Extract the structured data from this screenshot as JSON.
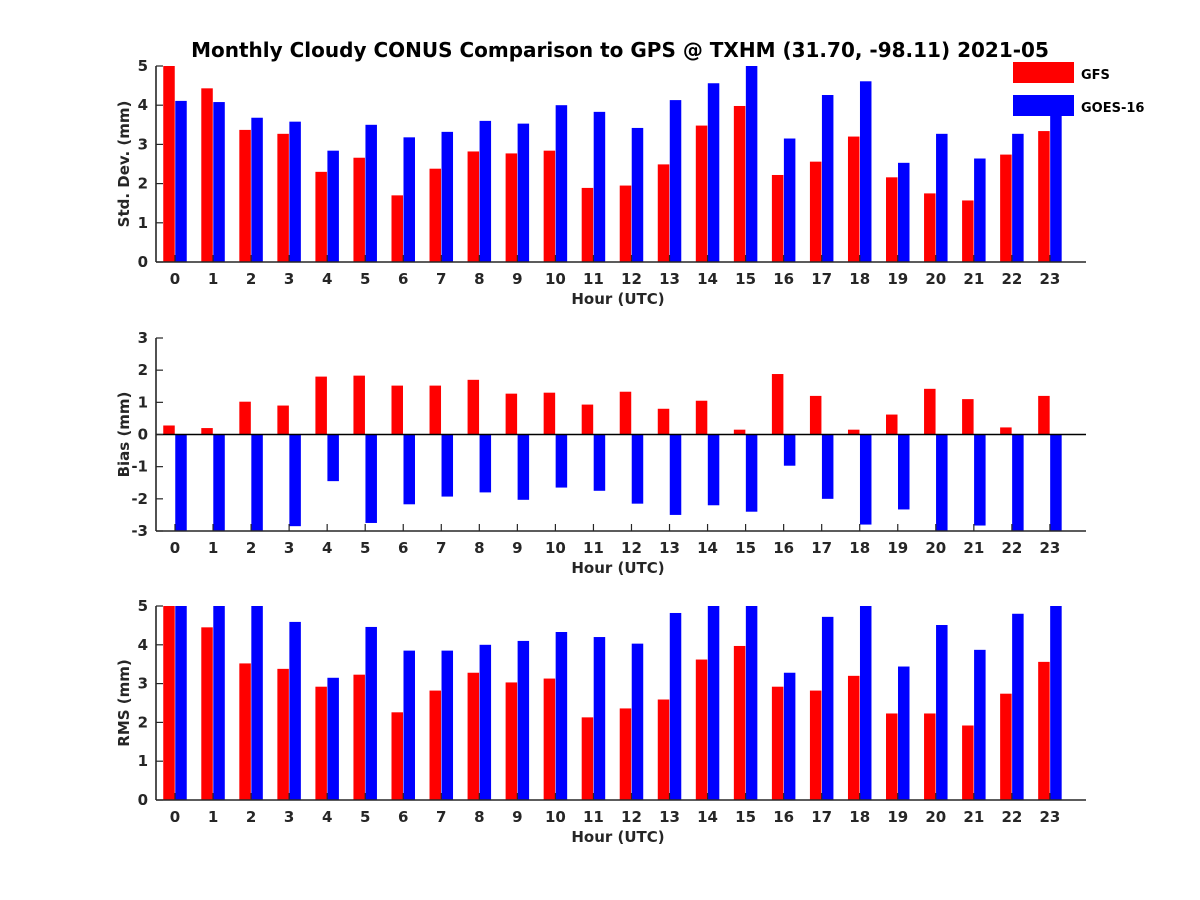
{
  "title": "Monthly Cloudy CONUS Comparison to GPS @ TXHM (31.70, -98.11) 2021-05",
  "legend": {
    "placement": "top-right",
    "entries": [
      "GFS",
      "GOES-16"
    ]
  },
  "colors": {
    "GFS": "#ff0000",
    "GOES-16": "#0000ff",
    "axis": "#262626"
  },
  "chart_data": [
    {
      "type": "bar",
      "xlabel": "Hour (UTC)",
      "ylabel": "Std. Dev. (mm)",
      "categories": [
        "0",
        "1",
        "2",
        "3",
        "4",
        "5",
        "6",
        "7",
        "8",
        "9",
        "10",
        "11",
        "12",
        "13",
        "14",
        "15",
        "16",
        "17",
        "18",
        "19",
        "20",
        "21",
        "22",
        "23"
      ],
      "ylim": [
        0,
        5
      ],
      "yticks": [
        0,
        1,
        2,
        3,
        4,
        5
      ],
      "grid": false,
      "series": [
        {
          "name": "GFS",
          "values": [
            5.0,
            4.43,
            3.37,
            3.27,
            2.3,
            2.66,
            1.7,
            2.38,
            2.82,
            2.77,
            2.84,
            1.89,
            1.95,
            2.49,
            3.48,
            3.98,
            2.22,
            2.56,
            3.2,
            2.16,
            1.75,
            1.57,
            2.74,
            3.34
          ]
        },
        {
          "name": "GOES-16",
          "values": [
            4.11,
            4.08,
            3.68,
            3.58,
            2.84,
            3.5,
            3.18,
            3.32,
            3.6,
            3.53,
            4.0,
            3.83,
            3.42,
            4.13,
            4.56,
            5.0,
            3.15,
            4.26,
            4.61,
            2.53,
            3.27,
            2.64,
            3.27,
            3.9
          ]
        }
      ]
    },
    {
      "type": "bar",
      "xlabel": "Hour (UTC)",
      "ylabel": "Bias (mm)",
      "categories": [
        "0",
        "1",
        "2",
        "3",
        "4",
        "5",
        "6",
        "7",
        "8",
        "9",
        "10",
        "11",
        "12",
        "13",
        "14",
        "15",
        "16",
        "17",
        "18",
        "19",
        "20",
        "21",
        "22",
        "23"
      ],
      "ylim": [
        -3,
        3
      ],
      "yticks": [
        -3,
        -2,
        -1,
        0,
        1,
        2,
        3
      ],
      "grid": false,
      "zero_line": true,
      "series": [
        {
          "name": "GFS",
          "values": [
            0.28,
            0.2,
            1.02,
            0.9,
            1.8,
            1.83,
            1.52,
            1.52,
            1.7,
            1.27,
            1.3,
            0.93,
            1.33,
            0.8,
            1.05,
            0.15,
            1.88,
            1.2,
            0.15,
            0.62,
            1.42,
            1.1,
            0.22,
            1.2
          ]
        },
        {
          "name": "GOES-16",
          "values": [
            -3.0,
            -3.0,
            -3.0,
            -2.85,
            -1.45,
            -2.75,
            -2.17,
            -1.93,
            -1.8,
            -2.03,
            -1.65,
            -1.75,
            -2.15,
            -2.5,
            -2.2,
            -2.4,
            -0.97,
            -2.0,
            -2.8,
            -2.33,
            -3.0,
            -2.83,
            -3.0,
            -3.0
          ]
        }
      ]
    },
    {
      "type": "bar",
      "xlabel": "Hour (UTC)",
      "ylabel": "RMS (mm)",
      "categories": [
        "0",
        "1",
        "2",
        "3",
        "4",
        "5",
        "6",
        "7",
        "8",
        "9",
        "10",
        "11",
        "12",
        "13",
        "14",
        "15",
        "16",
        "17",
        "18",
        "19",
        "20",
        "21",
        "22",
        "23"
      ],
      "ylim": [
        0,
        5
      ],
      "yticks": [
        0,
        1,
        2,
        3,
        4,
        5
      ],
      "grid": false,
      "series": [
        {
          "name": "GFS",
          "values": [
            5.0,
            4.45,
            3.52,
            3.38,
            2.92,
            3.23,
            2.26,
            2.82,
            3.28,
            3.03,
            3.13,
            2.13,
            2.36,
            2.59,
            3.62,
            3.97,
            2.92,
            2.82,
            3.2,
            2.23,
            2.23,
            1.92,
            2.74,
            3.56
          ]
        },
        {
          "name": "GOES-16",
          "values": [
            5.0,
            5.0,
            5.0,
            4.59,
            3.15,
            4.46,
            3.85,
            3.85,
            4.0,
            4.1,
            4.33,
            4.2,
            4.03,
            4.82,
            5.0,
            5.0,
            3.28,
            4.72,
            5.0,
            3.44,
            4.51,
            3.87,
            4.8,
            5.0
          ]
        }
      ]
    }
  ]
}
